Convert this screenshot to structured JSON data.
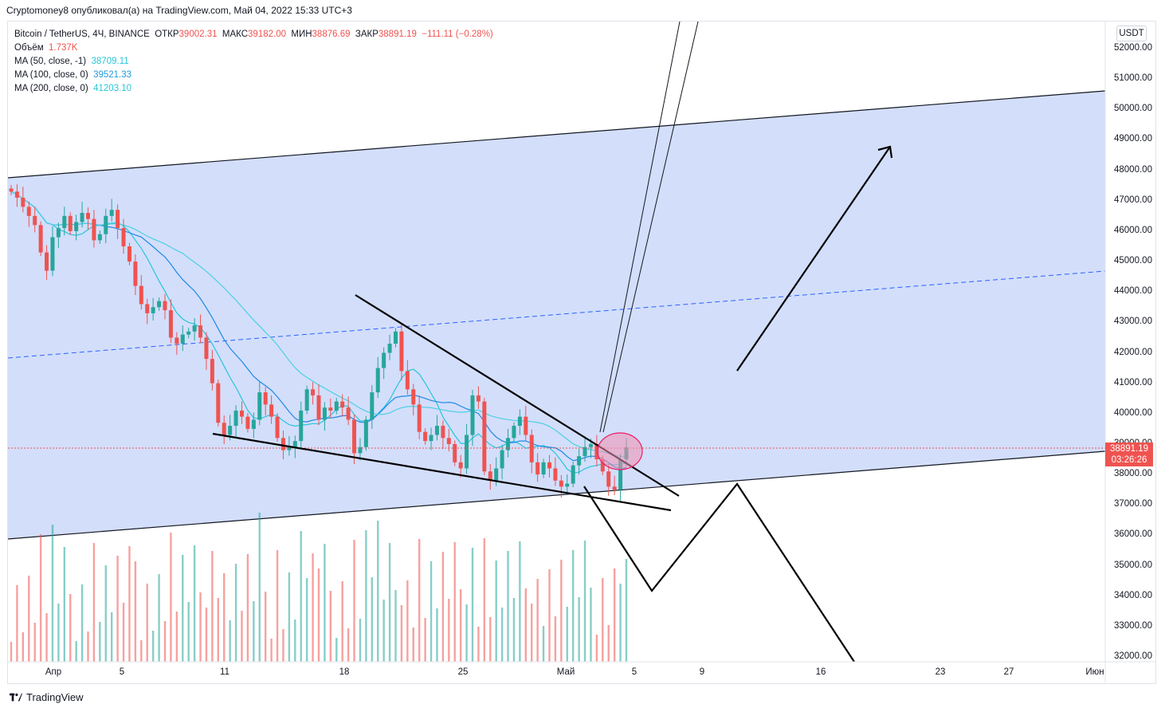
{
  "publisher_line": "Cryptomoney8 опубликовал(а) на TradingView.com, Май 04, 2022 15:33 UTC+3",
  "legend": {
    "symbol": "Bitcoin / TetherUS, 4Ч, BINANCE",
    "open_label": "ОТКР",
    "open_value": "39002.31",
    "high_label": "МАКС",
    "high_value": "39182.00",
    "low_label": "МИН",
    "low_value": "38876.69",
    "close_label": "ЗАКР",
    "close_value": "38891.19",
    "change": "−111.11 (−0.28%)",
    "volume_label": "Объём",
    "volume_value": "1.737K",
    "ma50_label": "MA (50, close, -1)",
    "ma50_value": "38709.11",
    "ma100_label": "MA (100, close, 0)",
    "ma100_value": "39521.33",
    "ma200_label": "MA (200, close, 0)",
    "ma200_value": "41203.10"
  },
  "currency": "USDT",
  "current_price": {
    "value": "38891.19",
    "countdown": "03:26:26",
    "color": "#ef5350"
  },
  "footer": {
    "brand": "TradingView"
  },
  "colors": {
    "up": "#26a69a",
    "down": "#ef5350",
    "channel_fill": "#d1dcfb",
    "ma50": "#26c6da",
    "ma100": "#1e88e5",
    "ma200": "#4dd0e1"
  },
  "chart_data": {
    "type": "candlestick",
    "y_ticks": [
      "52000.00",
      "51000.00",
      "50000.00",
      "49000.00",
      "48000.00",
      "47000.00",
      "46000.00",
      "45000.00",
      "44000.00",
      "43000.00",
      "42000.00",
      "41000.00",
      "40000.00",
      "39000.00",
      "38000.00",
      "37000.00",
      "36000.00",
      "35000.00",
      "34000.00",
      "33000.00",
      "32000.00"
    ],
    "x_ticks": [
      "Апр",
      "5",
      "11",
      "18",
      "25",
      "Май",
      "5",
      "9",
      "16",
      "23",
      "27",
      "Июн"
    ],
    "ylim": [
      31900,
      52600
    ],
    "close_series": [
      47300,
      47100,
      46800,
      46500,
      46200,
      45300,
      44700,
      45800,
      46100,
      46500,
      46000,
      46300,
      46600,
      46400,
      45700,
      45900,
      46500,
      46700,
      46100,
      45500,
      45000,
      44200,
      43600,
      43300,
      43500,
      43700,
      43400,
      42500,
      42300,
      42600,
      42700,
      42900,
      42500,
      41800,
      41000,
      39700,
      39300,
      39600,
      40100,
      39900,
      39500,
      39800,
      40700,
      40300,
      39900,
      39200,
      38800,
      38900,
      39100,
      40100,
      40800,
      40600,
      39800,
      40200,
      40100,
      40400,
      40200,
      39800,
      38700,
      38900,
      39800,
      40700,
      41500,
      42000,
      42300,
      42700,
      41400,
      40800,
      40300,
      39400,
      39100,
      39300,
      39600,
      39200,
      39000,
      38400,
      38200,
      39300,
      40600,
      40400,
      38100,
      37800,
      38200,
      38800,
      39200,
      39600,
      39900,
      39300,
      38400,
      38000,
      38400,
      38200,
      37800,
      37600,
      37700,
      38300,
      38600,
      38900,
      39000,
      38500,
      38100,
      37600,
      37500,
      38500,
      38891
    ]
  }
}
